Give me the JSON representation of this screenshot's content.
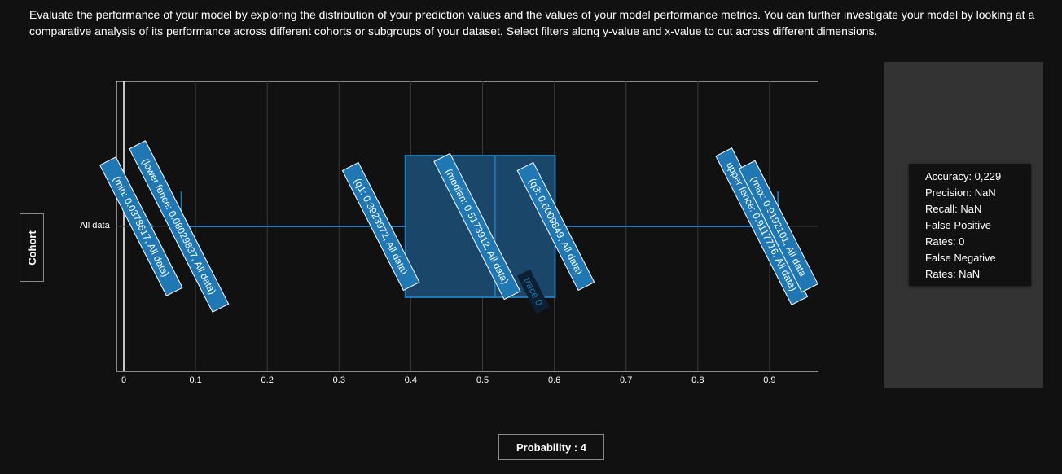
{
  "description": "Evaluate the performance of your model by exploring the distribution of your prediction values and the values of your model performance metrics. You can further investigate your model by looking at a comparative analysis of its performance across different cohorts or subgroups of your dataset. Select filters along y-value and x-value to cut across different dimensions.",
  "cohort_button": "Cohort",
  "x_axis_button": "Probability : 4",
  "metrics": {
    "accuracy": "Accuracy: 0,229",
    "precision": "Precision: NaN",
    "recall": "Recall: NaN",
    "fpr_line1": "False Positive",
    "fpr_line2": "Rates: 0",
    "fnr_line1": "False Negative",
    "fnr_line2": "Rates: NaN"
  },
  "colors": {
    "box_fill": "#1a4669",
    "box_line": "#1f77b4",
    "label_bg": "#1f77b4",
    "panel": "#333333"
  },
  "chart_data": {
    "type": "box",
    "orientation": "horizontal",
    "categories": [
      "All data"
    ],
    "series": [
      {
        "name": "trace 0",
        "category": "All data",
        "min": 0.0378617,
        "lower_fence": 0.08029837,
        "q1": 0.3923972,
        "median": 0.5173912,
        "q3": 0.6009849,
        "upper_fence": 0.9117716,
        "max": 0.9192101
      }
    ],
    "hover_labels": [
      "(min: 0.0378617, All data)",
      "(lower fence: 0.08029837, All data)",
      "(q1: 0.3923972, All data)",
      "(median: 0.5173912, All data)",
      "(q3: 0.6009849, All data)",
      "upper fence: 0.9117716, All data)",
      "(max: 0.9192101, All data"
    ],
    "trace_label": "trace 0",
    "xticks": [
      "0",
      "0.1",
      "0.2",
      "0.3",
      "0.4",
      "0.5",
      "0.6",
      "0.7",
      "0.8",
      "0.9"
    ],
    "xlim": [
      -0.01,
      0.97
    ],
    "grid": true
  }
}
